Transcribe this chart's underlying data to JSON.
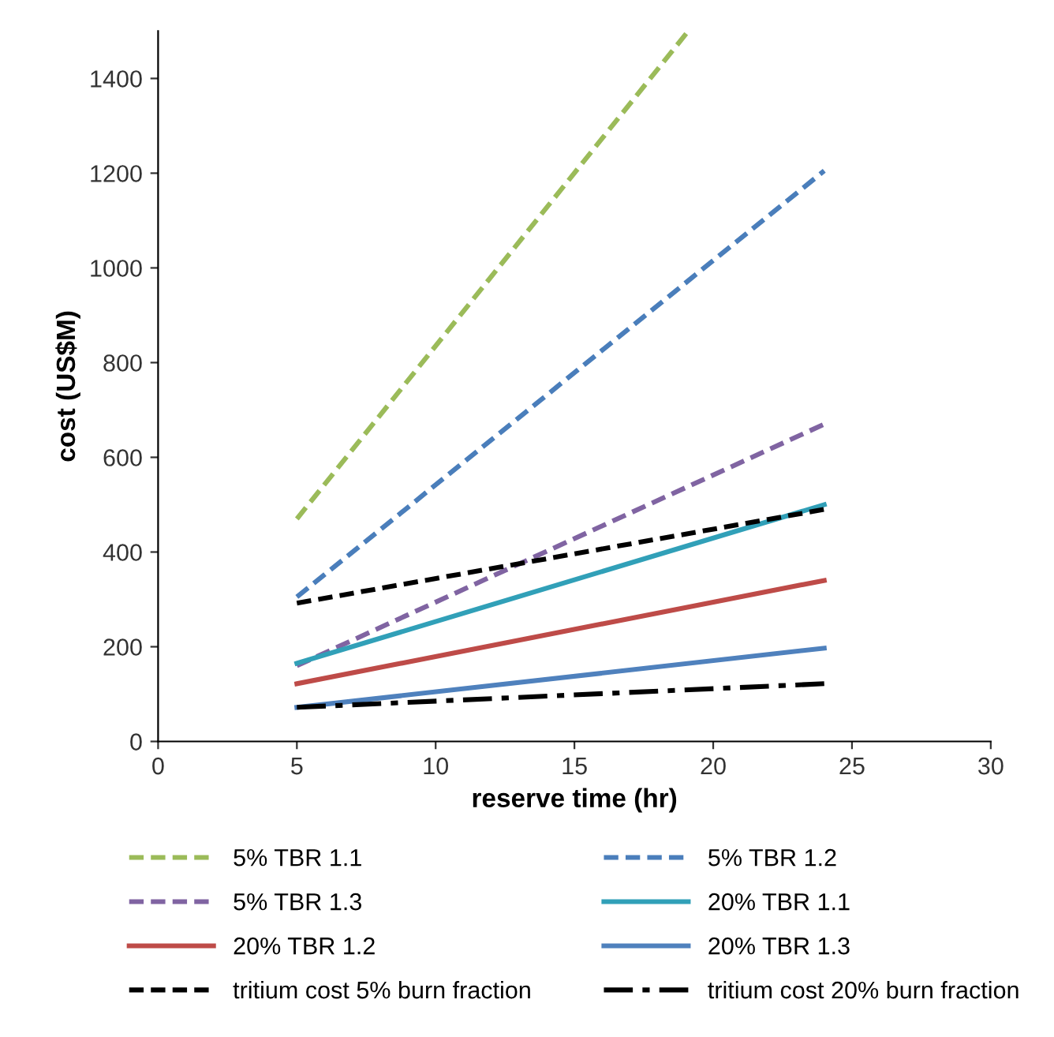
{
  "chart_data": {
    "type": "line",
    "xlabel": "reserve time (hr)",
    "ylabel": "cost (US$M)",
    "xlim": [
      0,
      30
    ],
    "xticks": [
      0,
      5,
      10,
      15,
      20,
      25,
      30
    ],
    "ylim": [
      0,
      1500
    ],
    "yticks": [
      0,
      200,
      400,
      600,
      800,
      1000,
      1200,
      1400
    ],
    "grid": false,
    "legend": "bottom",
    "marker": "none",
    "x": [
      5,
      24
    ],
    "series": [
      {
        "name": "5% TBR 1.1",
        "color": "#9bbb59",
        "line_style": "dashed",
        "x": [
          5,
          19.1
        ],
        "values": [
          470,
          1500
        ]
      },
      {
        "name": "5% TBR 1.2",
        "color": "#4a7ebb",
        "line_style": "dashed",
        "values": [
          305,
          1205
        ]
      },
      {
        "name": "5% TBR 1.3",
        "color": "#8064a2",
        "line_style": "dashed",
        "values": [
          160,
          670
        ]
      },
      {
        "name": "20% TBR 1.1",
        "color": "#31a0b8",
        "line_style": "solid",
        "values": [
          165,
          500
        ]
      },
      {
        "name": "20% TBR 1.2",
        "color": "#be4b48",
        "line_style": "solid",
        "values": [
          122,
          340
        ]
      },
      {
        "name": "20% TBR 1.3",
        "color": "#4f81bd",
        "line_style": "solid",
        "values": [
          72,
          197
        ]
      },
      {
        "name": "tritium cost 5% burn fraction",
        "color": "#000000",
        "line_style": "dashed",
        "values": [
          292,
          490
        ]
      },
      {
        "name": "tritium cost 20% burn fraction",
        "color": "#000000",
        "line_style": "dashdot",
        "values": [
          72,
          122
        ]
      }
    ]
  }
}
